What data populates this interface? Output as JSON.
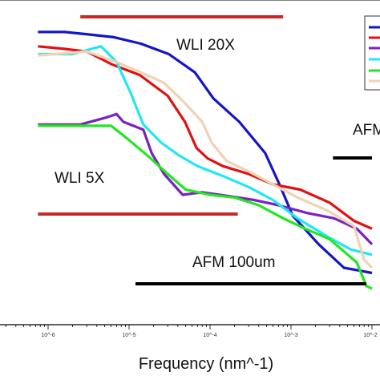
{
  "chart_data": {
    "type": "line",
    "xlabel": "Frequency (nm^-1)",
    "xscale": "log",
    "x_ticks": [
      "10^-6",
      "10^-5",
      "10^-4",
      "10^-3",
      "10^-2"
    ],
    "legend_position": "top-right",
    "colors": {
      "blue": "#1414c8",
      "red": "#e01010",
      "purple": "#7a22c0",
      "cyan": "#22e6f2",
      "green": "#22e622",
      "tan": "#f0d2b4",
      "range_red": "#c82828",
      "range_black": "#000000",
      "legend_border": "#333333"
    },
    "series": [
      {
        "color": "blue",
        "points": [
          [
            7.5e-07,
            -0.15
          ],
          [
            1.6e-06,
            -0.15
          ],
          [
            3.3e-06,
            -0.25
          ],
          [
            6.5e-06,
            -0.35
          ],
          [
            1.4e-05,
            -0.6
          ],
          [
            3.1e-05,
            -1.0
          ],
          [
            6.5e-05,
            -1.7
          ],
          [
            0.00011,
            -2.7
          ],
          [
            0.00023,
            -3.6
          ],
          [
            0.00048,
            -4.8
          ],
          [
            0.00072,
            -6.0
          ],
          [
            0.00105,
            -7.2
          ],
          [
            0.0022,
            -8.3
          ],
          [
            0.0045,
            -9.2
          ],
          [
            0.0068,
            -9.3
          ],
          [
            0.01,
            -9.4
          ]
        ]
      },
      {
        "color": "red",
        "points": [
          [
            7.5e-07,
            -0.7
          ],
          [
            1.6e-06,
            -0.8
          ],
          [
            3e-06,
            -0.9
          ],
          [
            6.2e-06,
            -1.4
          ],
          [
            1.35e-05,
            -1.8
          ],
          [
            3e-05,
            -2.6
          ],
          [
            4.9e-05,
            -3.6
          ],
          [
            6.8e-05,
            -4.6
          ],
          [
            9.3e-05,
            -5.0
          ],
          [
            0.000145,
            -5.3
          ],
          [
            0.0003,
            -5.6
          ],
          [
            0.0006,
            -6.0
          ],
          [
            0.0013,
            -6.2
          ],
          [
            0.003,
            -6.7
          ],
          [
            0.006,
            -7.4
          ],
          [
            0.01,
            -7.7
          ]
        ]
      },
      {
        "color": "purple",
        "points": [
          [
            7.5e-07,
            -3.7
          ],
          [
            2.5e-06,
            -3.7
          ],
          [
            5e-06,
            -3.45
          ],
          [
            7e-06,
            -3.3
          ],
          [
            8.5e-06,
            -3.6
          ],
          [
            1.5e-05,
            -3.9
          ],
          [
            1.9e-05,
            -4.8
          ],
          [
            2.7e-05,
            -5.6
          ],
          [
            4.6e-05,
            -6.4
          ],
          [
            8e-05,
            -6.3
          ],
          [
            0.00017,
            -6.45
          ],
          [
            0.00035,
            -6.6
          ],
          [
            0.0007,
            -6.8
          ],
          [
            0.0016,
            -7.1
          ],
          [
            0.0034,
            -7.3
          ],
          [
            0.0065,
            -7.7
          ],
          [
            0.01,
            -8.3
          ]
        ]
      },
      {
        "color": "cyan",
        "points": [
          [
            7.5e-07,
            -1.0
          ],
          [
            2e-06,
            -1.0
          ],
          [
            4.5e-06,
            -0.7
          ],
          [
            7e-06,
            -1.3
          ],
          [
            1.05e-05,
            -2.5
          ],
          [
            1.5e-05,
            -3.7
          ],
          [
            2.5e-05,
            -4.4
          ],
          [
            4.2e-05,
            -4.9
          ],
          [
            7e-05,
            -5.3
          ],
          [
            0.00015,
            -5.7
          ],
          [
            0.0003,
            -6.1
          ],
          [
            0.0006,
            -6.6
          ],
          [
            0.0012,
            -7.3
          ],
          [
            0.0028,
            -8.0
          ],
          [
            0.0055,
            -8.5
          ],
          [
            0.01,
            -8.7
          ]
        ]
      },
      {
        "color": "green",
        "points": [
          [
            7.5e-07,
            -3.75
          ],
          [
            6e-06,
            -3.75
          ],
          [
            1e-05,
            -4.3
          ],
          [
            1.7e-05,
            -4.9
          ],
          [
            3e-05,
            -5.6
          ],
          [
            5e-05,
            -6.2
          ],
          [
            0.0001,
            -6.4
          ],
          [
            0.0002,
            -6.5
          ],
          [
            0.0004,
            -6.8
          ],
          [
            0.0008,
            -7.3
          ],
          [
            0.0015,
            -7.7
          ],
          [
            0.003,
            -8.1
          ],
          [
            0.0065,
            -9.0
          ],
          [
            0.0085,
            -9.9
          ],
          [
            0.01,
            -10.0
          ]
        ]
      },
      {
        "color": "tan",
        "points": [
          [
            7.5e-07,
            -1.05
          ],
          [
            3e-06,
            -0.9
          ],
          [
            7e-06,
            -1.3
          ],
          [
            1.4e-05,
            -1.7
          ],
          [
            2.7e-05,
            -2.1
          ],
          [
            4.8e-05,
            -2.85
          ],
          [
            8e-05,
            -3.6
          ],
          [
            0.000105,
            -4.4
          ],
          [
            0.00016,
            -5.1
          ],
          [
            0.0003,
            -5.5
          ],
          [
            0.0006,
            -6.0
          ],
          [
            0.0012,
            -6.5
          ],
          [
            0.0028,
            -7.0
          ],
          [
            0.006,
            -7.6
          ],
          [
            0.008,
            -8.9
          ],
          [
            0.01,
            -9.2
          ]
        ]
      }
    ],
    "range_bars": [
      {
        "label": "WLI 20X",
        "color": "range_red",
        "x_range": [
          2.5e-06,
          0.0008
        ]
      },
      {
        "label": "WLI 5X",
        "color": "range_red",
        "x_range": [
          7.5e-07,
          0.00022
        ]
      },
      {
        "label": "AFM",
        "color": "range_black",
        "x_range": [
          0.0033,
          0.01
        ]
      },
      {
        "label": "AFM 100um",
        "color": "range_black",
        "x_range": [
          1.2e-05,
          0.0085
        ]
      }
    ]
  }
}
